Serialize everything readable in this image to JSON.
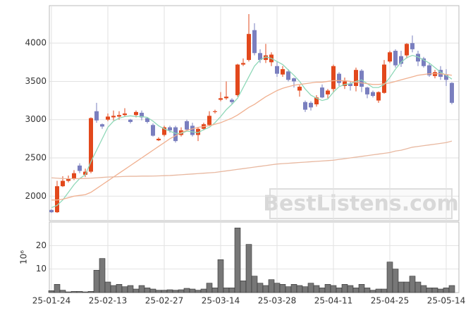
{
  "chart_data": [
    {
      "type": "candlestick",
      "categories": [
        "25-01-24",
        null,
        null,
        null,
        null,
        null,
        null,
        null,
        null,
        null,
        "25-02-13",
        null,
        null,
        null,
        null,
        null,
        null,
        null,
        null,
        null,
        "25-02-27",
        null,
        null,
        null,
        null,
        null,
        null,
        null,
        null,
        null,
        "25-03-14",
        null,
        null,
        null,
        null,
        null,
        null,
        null,
        null,
        null,
        "25-03-28",
        null,
        null,
        null,
        null,
        null,
        null,
        null,
        null,
        null,
        "25-04-11",
        null,
        null,
        null,
        null,
        null,
        null,
        null,
        null,
        null,
        "25-04-25",
        null,
        null,
        null,
        null,
        null,
        null,
        null,
        null,
        null,
        "25-05-14",
        null
      ],
      "open": [
        1820,
        1790,
        2130,
        2200,
        2230,
        2400,
        2280,
        2320,
        3110,
        2940,
        3000,
        3030,
        3040,
        3060,
        3000,
        3060,
        3090,
        3020,
        2930,
        2730,
        2800,
        2900,
        2900,
        2800,
        2980,
        2920,
        2800,
        2880,
        2930,
        3100,
        3260,
        3280,
        3260,
        3320,
        3720,
        3780,
        4170,
        3870,
        3780,
        3750,
        3700,
        3590,
        3630,
        3540,
        3380,
        3230,
        3220,
        3200,
        3420,
        3330,
        3400,
        3600,
        3440,
        3470,
        3440,
        3640,
        3420,
        3360,
        3250,
        3350,
        3760,
        3900,
        3830,
        3840,
        4000,
        3860,
        3800,
        3710,
        3570,
        3650,
        3590,
        3480
      ],
      "high": [
        1830,
        2200,
        2260,
        2270,
        2340,
        2430,
        2360,
        3030,
        3220,
        2950,
        3080,
        3120,
        3110,
        3150,
        3010,
        3120,
        3120,
        3030,
        2950,
        2770,
        2920,
        2920,
        2920,
        2900,
        3000,
        2960,
        2900,
        2960,
        3110,
        3130,
        3360,
        3500,
        3280,
        3730,
        3800,
        4380,
        4260,
        3920,
        3990,
        3880,
        3760,
        3700,
        3660,
        3550,
        3450,
        3250,
        3240,
        3320,
        3460,
        3400,
        3720,
        3620,
        3550,
        3500,
        3680,
        3660,
        3430,
        3380,
        3370,
        3780,
        3900,
        3920,
        3900,
        4000,
        4100,
        3900,
        3820,
        3740,
        3650,
        3700,
        3660,
        3490
      ],
      "low": [
        1780,
        1780,
        2120,
        2180,
        2210,
        2300,
        2250,
        2300,
        2960,
        2880,
        2980,
        2990,
        3000,
        3040,
        2950,
        3030,
        2990,
        2950,
        2780,
        2720,
        2780,
        2830,
        2700,
        2780,
        2850,
        2780,
        2720,
        2860,
        2920,
        3080,
        3240,
        3260,
        3200,
        3300,
        3700,
        3760,
        3840,
        3740,
        3740,
        3700,
        3560,
        3560,
        3500,
        3420,
        3300,
        3100,
        3120,
        3170,
        3280,
        3280,
        3350,
        3440,
        3400,
        3380,
        3370,
        3360,
        3280,
        3290,
        3220,
        3340,
        3740,
        3680,
        3690,
        3800,
        3880,
        3700,
        3680,
        3560,
        3540,
        3520,
        3440,
        3200
      ],
      "close": [
        1790,
        2130,
        2200,
        2230,
        2300,
        2330,
        2320,
        3020,
        2990,
        2910,
        3040,
        3050,
        3060,
        3080,
        2970,
        3100,
        3030,
        2970,
        2790,
        2750,
        2900,
        2860,
        2720,
        2860,
        2870,
        2800,
        2880,
        2940,
        3050,
        3110,
        3280,
        3300,
        3230,
        3720,
        3740,
        4120,
        3870,
        3780,
        3840,
        3850,
        3600,
        3660,
        3520,
        3500,
        3430,
        3130,
        3160,
        3290,
        3290,
        3380,
        3700,
        3480,
        3500,
        3440,
        3650,
        3430,
        3330,
        3310,
        3360,
        3720,
        3880,
        3710,
        3730,
        3990,
        3920,
        3760,
        3700,
        3580,
        3620,
        3560,
        3520,
        3220
      ],
      "up_color": "#e2481c",
      "down_color": "#7a7fbf",
      "series": [
        {
          "color": "#8fd8b8",
          "values": [
            1850,
            1880,
            1950,
            2050,
            2150,
            2230,
            2280,
            2450,
            2600,
            2750,
            2900,
            2980,
            3020,
            3040,
            3050,
            3040,
            3040,
            3030,
            2980,
            2920,
            2880,
            2850,
            2820,
            2820,
            2850,
            2840,
            2830,
            2870,
            2900,
            2960,
            3040,
            3130,
            3200,
            3280,
            3420,
            3560,
            3700,
            3780,
            3820,
            3800,
            3760,
            3720,
            3650,
            3580,
            3500,
            3400,
            3320,
            3280,
            3250,
            3270,
            3360,
            3430,
            3460,
            3470,
            3500,
            3520,
            3470,
            3420,
            3420,
            3460,
            3550,
            3660,
            3750,
            3810,
            3840,
            3820,
            3780,
            3740,
            3680,
            3620,
            3580,
            3530
          ]
        },
        {
          "color": "#f0b090",
          "values": [
            1950,
            1950,
            1960,
            1980,
            2000,
            2010,
            2020,
            2050,
            2100,
            2150,
            2200,
            2250,
            2300,
            2350,
            2400,
            2450,
            2500,
            2550,
            2600,
            2650,
            2700,
            2750,
            2790,
            2830,
            2860,
            2880,
            2900,
            2910,
            2920,
            2940,
            2960,
            2990,
            3020,
            3060,
            3110,
            3160,
            3200,
            3250,
            3300,
            3340,
            3380,
            3410,
            3430,
            3450,
            3460,
            3470,
            3480,
            3490,
            3490,
            3500,
            3510,
            3510,
            3510,
            3500,
            3490,
            3480,
            3470,
            3460,
            3460,
            3470,
            3480,
            3500,
            3520,
            3540,
            3560,
            3580,
            3590,
            3600,
            3600,
            3600,
            3590,
            3580
          ]
        },
        {
          "color": "#e8b8a0",
          "values": [
            2240,
            2235,
            2230,
            2228,
            2228,
            2230,
            2232,
            2235,
            2240,
            2245,
            2250,
            2252,
            2255,
            2258,
            2260,
            2260,
            2262,
            2262,
            2263,
            2265,
            2268,
            2270,
            2275,
            2280,
            2285,
            2290,
            2295,
            2300,
            2305,
            2310,
            2320,
            2330,
            2340,
            2350,
            2360,
            2370,
            2380,
            2390,
            2400,
            2410,
            2420,
            2425,
            2430,
            2435,
            2440,
            2445,
            2450,
            2455,
            2460,
            2465,
            2470,
            2480,
            2490,
            2500,
            2510,
            2520,
            2530,
            2540,
            2550,
            2560,
            2570,
            2590,
            2600,
            2620,
            2640,
            2650,
            2660,
            2670,
            2680,
            2690,
            2700,
            2720
          ]
        }
      ],
      "ylim": [
        1680,
        4490
      ],
      "yticks": [
        2000,
        2500,
        3000,
        3500,
        4000
      ],
      "grid": true,
      "watermark": "BestListens.com"
    },
    {
      "type": "bar",
      "ylabel": "10⁶",
      "color": "#777777",
      "values": [
        0.8,
        3.5,
        1.0,
        0.3,
        0.5,
        0.5,
        0.3,
        0.5,
        9.5,
        14.5,
        4.5,
        3.0,
        3.5,
        2.5,
        3.0,
        1.5,
        3.0,
        2.0,
        1.5,
        1.0,
        1.0,
        1.2,
        1.0,
        1.2,
        1.8,
        1.5,
        1.0,
        1.5,
        4.0,
        2.0,
        14.0,
        2.0,
        2.0,
        27.5,
        5.0,
        20.5,
        7.0,
        4.0,
        3.0,
        5.5,
        4.0,
        3.5,
        2.5,
        3.5,
        3.0,
        2.5,
        4.0,
        3.0,
        2.0,
        3.5,
        3.0,
        2.0,
        3.5,
        3.0,
        2.0,
        3.5,
        2.0,
        1.0,
        1.5,
        1.5,
        13.0,
        10.0,
        4.5,
        4.5,
        7.0,
        4.5,
        3.0,
        2.0,
        2.0,
        1.5,
        2.0,
        3.0
      ],
      "ylim": [
        0,
        30
      ],
      "yticks": [
        10,
        20
      ],
      "grid": true
    }
  ]
}
